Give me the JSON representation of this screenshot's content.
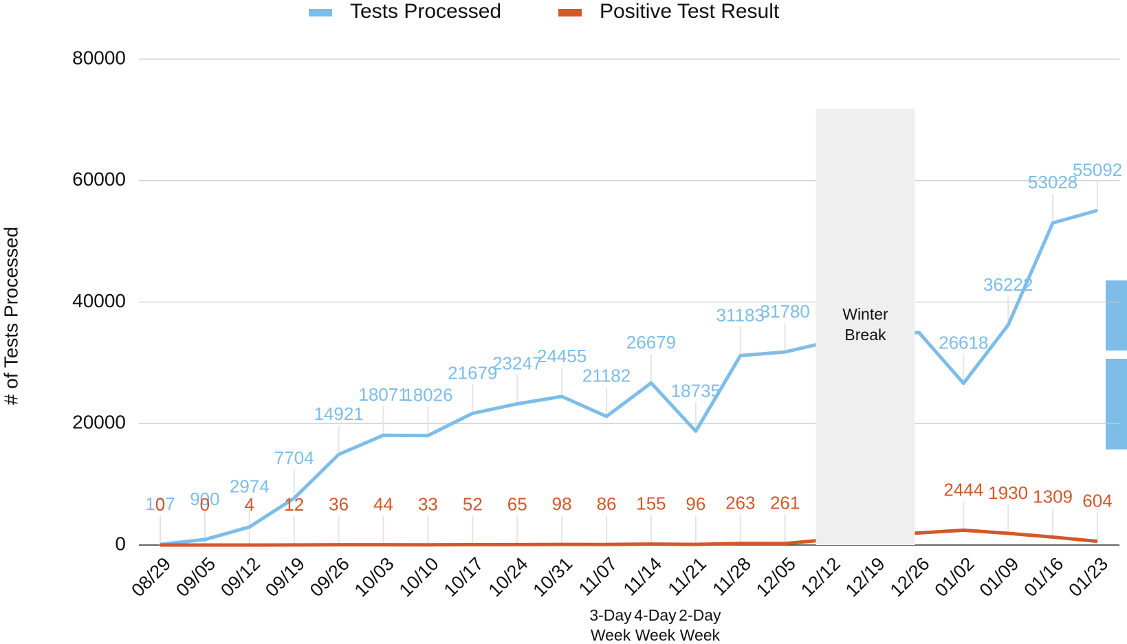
{
  "chart_data": {
    "type": "line",
    "y_label": "# of Tests Processed",
    "categories": [
      "08/29",
      "09/05",
      "09/12",
      "09/19",
      "09/26",
      "10/03",
      "10/10",
      "10/17",
      "10/24",
      "10/31",
      "11/07",
      "11/14",
      "11/21",
      "11/28",
      "12/05",
      "12/12",
      "12/19",
      "12/26",
      "01/02",
      "01/09",
      "01/16",
      "01/23"
    ],
    "series": [
      {
        "name": "Tests Processed",
        "color": "#7dbde8",
        "values": [
          107,
          900,
          2974,
          7704,
          14921,
          18071,
          18026,
          21679,
          23247,
          24455,
          21182,
          26679,
          18735,
          31183,
          31780,
          33500,
          34500,
          35000,
          26618,
          36222,
          53028,
          55092
        ],
        "value_labels": [
          "107",
          "900",
          "2974",
          "7704",
          "14921",
          "18071",
          "18026",
          "21679",
          "23247",
          "24455",
          "21182",
          "26679",
          "18735",
          "31183",
          "31780",
          null,
          null,
          null,
          "26618",
          "36222",
          "53028",
          "55092"
        ]
      },
      {
        "name": "Positive Test Result",
        "color": "#d2582b",
        "values": [
          0,
          0,
          4,
          12,
          36,
          44,
          33,
          52,
          65,
          98,
          86,
          155,
          96,
          263,
          261,
          900,
          1500,
          2000,
          2444,
          1930,
          1309,
          604
        ],
        "value_labels": [
          "0",
          "0",
          "4",
          "12",
          "36",
          "44",
          "33",
          "52",
          "65",
          "98",
          "86",
          "155",
          "96",
          "263",
          "261",
          null,
          null,
          null,
          "2444",
          "1930",
          "1309",
          "604"
        ]
      }
    ],
    "ylim": [
      0,
      80000
    ],
    "yticks": [
      0,
      20000,
      40000,
      60000,
      80000
    ],
    "grid": true,
    "legend": "top",
    "annotations": {
      "winter_break": "Winter Break",
      "notes": [
        {
          "category": "11/07",
          "text": "3-Day Week"
        },
        {
          "category": "11/14",
          "text": "4-Day Week"
        },
        {
          "category": "11/21",
          "text": "2-Day Week"
        }
      ]
    }
  }
}
